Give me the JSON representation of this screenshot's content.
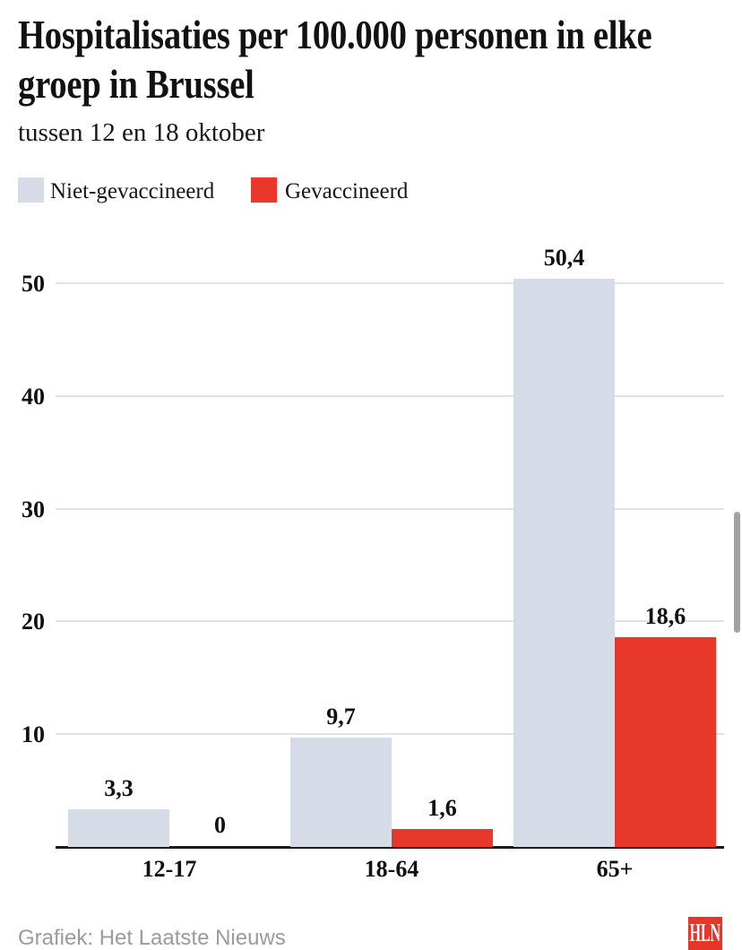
{
  "header": {
    "title_lines": [
      "Hospitalisaties per 100.000 personen in elke",
      "groep in Brussel"
    ],
    "subtitle": "tussen 12 en 18 oktober"
  },
  "legend": {
    "items": [
      {
        "label": "Niet-gevaccineerd",
        "color": "#d6dce7"
      },
      {
        "label": "Gevaccineerd",
        "color": "#e7382b"
      }
    ]
  },
  "chart_data": {
    "type": "bar",
    "title": "Hospitalisaties per 100.000 personen in elke groep in Brussel",
    "subtitle": "tussen 12 en 18 oktober",
    "categories": [
      "12-17",
      "18-64",
      "65+"
    ],
    "series": [
      {
        "name": "Niet-gevaccineerd",
        "color": "#d6dce7",
        "values": [
          3.3,
          9.7,
          50.4
        ],
        "value_labels": [
          "3,3",
          "9,7",
          "50,4"
        ]
      },
      {
        "name": "Gevaccineerd",
        "color": "#e7382b",
        "values": [
          0,
          1.6,
          18.6
        ],
        "value_labels": [
          "0",
          "1,6",
          "18,6"
        ]
      }
    ],
    "y_ticks": [
      10,
      20,
      30,
      40,
      50
    ],
    "ylim": [
      0,
      52.5
    ],
    "grid": true,
    "legend_position": "top",
    "colors": {
      "grid": "#e2e2e2",
      "axis": "#1a1a1a",
      "text": "#111111"
    }
  },
  "footer": {
    "credit": "Grafiek: Het Laatste Nieuws",
    "logo_text": "HLN",
    "logo_color": "#e7352a"
  }
}
